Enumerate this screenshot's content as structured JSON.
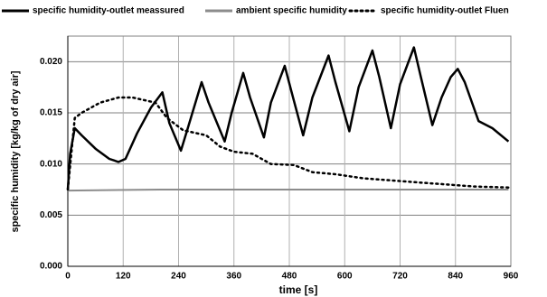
{
  "chart_data": {
    "type": "line",
    "xlabel": "time [s]",
    "ylabel": "specific humidity [kg/kg of dry air]",
    "xlim": [
      0,
      960
    ],
    "xticks": [
      0,
      120,
      240,
      360,
      480,
      600,
      720,
      840,
      960
    ],
    "ylim": [
      0,
      0.0225
    ],
    "yticks": [
      {
        "value": 0,
        "label": "0.000"
      },
      {
        "value": 0.005,
        "label": "0.005"
      },
      {
        "value": 0.01,
        "label": "0.010"
      },
      {
        "value": 0.015,
        "label": "0.015"
      },
      {
        "value": 0.02,
        "label": "0.020"
      }
    ],
    "grid": true,
    "legend": "top",
    "series": [
      {
        "name": "specific humidity-outlet meassured",
        "color": "#000000",
        "style": "solid",
        "x": [
          0,
          5,
          15,
          30,
          60,
          90,
          110,
          125,
          150,
          180,
          205,
          220,
          245,
          260,
          290,
          305,
          340,
          355,
          380,
          395,
          425,
          440,
          470,
          485,
          510,
          530,
          565,
          580,
          610,
          630,
          660,
          675,
          700,
          720,
          750,
          765,
          790,
          810,
          830,
          845,
          860,
          890,
          920,
          955
        ],
        "values": [
          0.0075,
          0.011,
          0.0135,
          0.0128,
          0.0115,
          0.0105,
          0.0102,
          0.0105,
          0.013,
          0.0155,
          0.017,
          0.014,
          0.0113,
          0.0135,
          0.018,
          0.016,
          0.0122,
          0.015,
          0.0189,
          0.0165,
          0.0126,
          0.016,
          0.0196,
          0.017,
          0.0128,
          0.0165,
          0.0206,
          0.018,
          0.0132,
          0.0175,
          0.0211,
          0.0185,
          0.0135,
          0.0178,
          0.0214,
          0.0185,
          0.0138,
          0.0165,
          0.0185,
          0.0193,
          0.018,
          0.0142,
          0.0135,
          0.0122
        ]
      },
      {
        "name": "ambient specific humidity",
        "color": "#8c8c8c",
        "style": "solid",
        "x": [
          0,
          200,
          600,
          955
        ],
        "values": [
          0.0074,
          0.0075,
          0.0075,
          0.0075
        ]
      },
      {
        "name": "specific humidity-outlet Fluen",
        "color": "#000000",
        "style": "dotted",
        "x": [
          0,
          15,
          30,
          70,
          110,
          140,
          190,
          215,
          250,
          300,
          330,
          360,
          400,
          440,
          490,
          530,
          580,
          640,
          700,
          760,
          820,
          880,
          955
        ],
        "values": [
          0.0075,
          0.0145,
          0.015,
          0.016,
          0.0165,
          0.0165,
          0.016,
          0.0145,
          0.0133,
          0.0128,
          0.0117,
          0.0112,
          0.011,
          0.01,
          0.0099,
          0.0092,
          0.009,
          0.0086,
          0.0084,
          0.0082,
          0.008,
          0.0078,
          0.0077
        ]
      }
    ]
  }
}
